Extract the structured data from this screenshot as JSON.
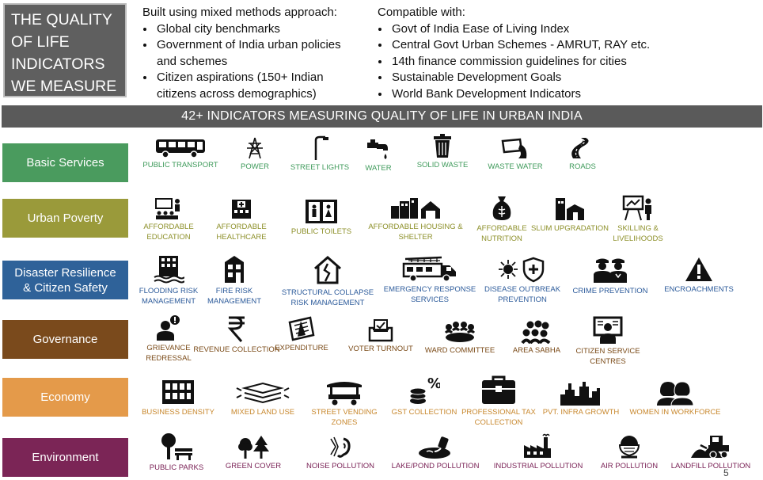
{
  "title_lines": [
    "THE QUALITY",
    "OF LIFE",
    "INDICATORS",
    "WE MEASURE"
  ],
  "built": {
    "head": "Built using mixed methods approach:",
    "items": [
      "Global city benchmarks",
      "Government of India urban policies and schemes",
      "Citizen aspirations (150+ Indian citizens across demographics)"
    ]
  },
  "compatible": {
    "head": "Compatible with:",
    "items": [
      "Govt of India Ease of Living Index",
      "Central Govt Urban Schemes - AMRUT, RAY etc.",
      "14th finance commission guidelines for cities",
      "Sustainable Development Goals",
      "World Bank Development Indicators"
    ]
  },
  "banner": "42+ INDICATORS MEASURING QUALITY OF LIFE IN URBAN INDIA",
  "colors": {
    "basic": "#4a9b5e",
    "poverty": "#9a9a3a",
    "disaster": "#2f6299",
    "governance": "#7a4a1c",
    "economy": "#e49a4a",
    "environment": "#7b2556"
  },
  "categories": {
    "basic": "Basic Services",
    "poverty": "Urban Poverty",
    "disaster_1": "Disaster Resilience",
    "disaster_2": "& Citizen Safety",
    "governance": "Governance",
    "economy": "Economy",
    "environment": "Environment"
  },
  "basic": [
    "PUBLIC TRANSPORT",
    "POWER",
    "STREET LIGHTS",
    "WATER",
    "SOLID WASTE",
    "WASTE WATER",
    "ROADS"
  ],
  "poverty": [
    "AFFORDABLE EDUCATION",
    "AFFORDABLE HEALTHCARE",
    "PUBLIC TOILETS",
    "AFFORDABLE HOUSING & SHELTER",
    "AFFORDABLE NUTRITION",
    "SLUM UPGRADATION",
    "SKILLING & LIVELIHOODS"
  ],
  "disaster": [
    "FLOODING RISK MANAGEMENT",
    "FIRE RISK MANAGEMENT",
    "STRUCTURAL COLLAPSE RISK MANAGEMENT",
    "EMERGENCY RESPONSE SERVICES",
    "DISEASE OUTBREAK PREVENTION",
    "CRIME PREVENTION",
    "ENCROACHMENTS"
  ],
  "governance": [
    "GRIEVANCE REDRESSAL",
    "REVENUE COLLECTION",
    "EXPENDITURE",
    "VOTER TURNOUT",
    "WARD COMMITTEE",
    "AREA SABHA",
    "CITIZEN SERVICE CENTRES"
  ],
  "economy": [
    "BUSINESS DENSITY",
    "MIXED LAND USE",
    "STREET VENDING ZONES",
    "GST COLLECTION",
    "PROFESSIONAL TAX COLLECTION",
    "PVT. INFRA GROWTH",
    "WOMEN IN WORKFORCE"
  ],
  "environment": [
    "PUBLIC PARKS",
    "GREEN COVER",
    "NOISE POLLUTION",
    "LAKE/POND POLLUTION",
    "INDUSTRIAL POLLUTION",
    "AIR POLLUTION",
    "LANDFILL POLLUTION"
  ],
  "icons": {
    "basic": [
      "bus-icon",
      "power-tower-icon",
      "street-light-icon",
      "water-tap-icon",
      "trash-can-icon",
      "waste-water-icon",
      "road-icon"
    ],
    "poverty": [
      "classroom-icon",
      "hospital-icon",
      "toilet-icon",
      "housing-icon",
      "food-sack-icon",
      "slum-icon",
      "teacher-board-icon"
    ],
    "disaster": [
      "flood-building-icon",
      "fire-building-icon",
      "cracked-house-icon",
      "fire-truck-icon",
      "virus-shield-icon",
      "police-icon",
      "warning-icon"
    ],
    "governance": [
      "grievance-person-icon",
      "rupee-icon",
      "expenditure-icon",
      "ballot-box-icon",
      "ward-committee-icon",
      "area-sabha-icon",
      "service-centre-icon"
    ],
    "economy": [
      "office-building-icon",
      "land-layers-icon",
      "vending-stall-icon",
      "coins-percent-icon",
      "briefcase-icon",
      "skyline-icon",
      "women-icon"
    ],
    "environment": [
      "park-bench-icon",
      "trees-icon",
      "noise-ear-icon",
      "pond-pollution-icon",
      "factory-icon",
      "mask-face-icon",
      "bulldozer-icon"
    ]
  },
  "page_number": "5"
}
